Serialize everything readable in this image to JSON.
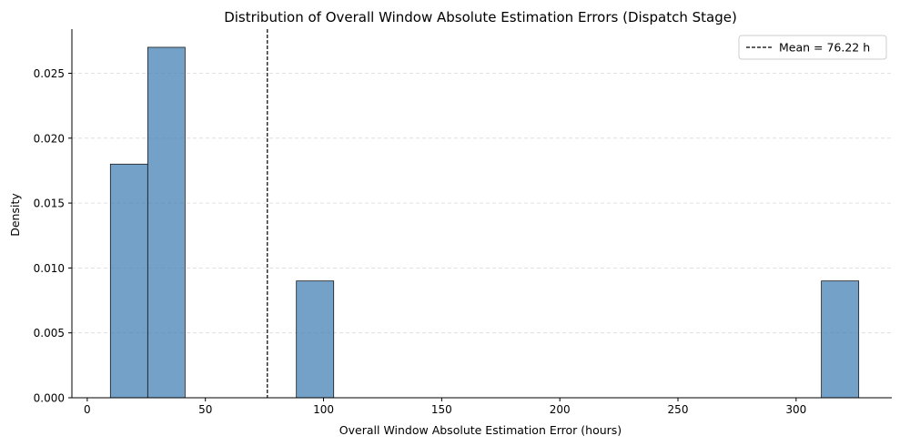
{
  "chart_data": {
    "type": "bar",
    "title": "Distribution of Overall Window Absolute Estimation Errors (Dispatch Stage)",
    "xlabel": "Overall Window Absolute Estimation Error (hours)",
    "ylabel": "Density",
    "xlim": [
      -6.5,
      340.5
    ],
    "ylim": [
      0,
      0.0284
    ],
    "xticks": [
      0,
      50,
      100,
      150,
      200,
      250,
      300
    ],
    "xtick_labels": [
      "0",
      "50",
      "100",
      "150",
      "200",
      "250",
      "300"
    ],
    "yticks": [
      0,
      0.005,
      0.01,
      0.015,
      0.02,
      0.025
    ],
    "ytick_labels": [
      "0.000",
      "0.005",
      "0.010",
      "0.015",
      "0.020",
      "0.025"
    ],
    "grid": "y-dashed",
    "legend_position": "top-right",
    "bar_color": "#4682b4",
    "bins": [
      {
        "x0": 9.8,
        "x1": 25.6,
        "value": 0.018
      },
      {
        "x0": 25.6,
        "x1": 41.4,
        "value": 0.027
      },
      {
        "x0": 88.5,
        "x1": 104.3,
        "value": 0.009
      },
      {
        "x0": 310.7,
        "x1": 326.5,
        "value": 0.009
      }
    ],
    "mean": {
      "value": 76.22,
      "label": "Mean = 76.22 h"
    }
  }
}
